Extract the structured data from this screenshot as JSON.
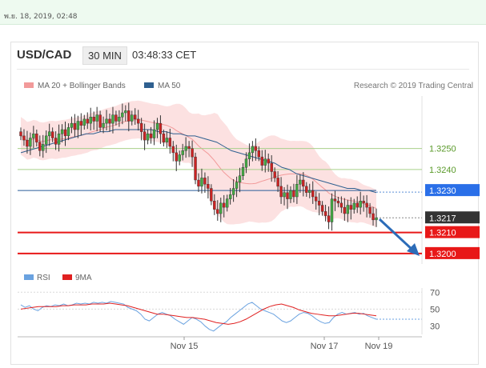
{
  "timestamp": "พ.ย. 18, 2019, 02:48",
  "header": {
    "pair": "USD/CAD",
    "timeframe": "30 MIN",
    "time": "03:48:33 CET"
  },
  "colors": {
    "bollinger": "#f29a9a",
    "ma50": "#2f6090",
    "rsi": "#6aa2e0",
    "rsi_ma": "#e02020",
    "support": "#e81818",
    "level_blue": "#2a6fe8",
    "price_box": "#333333",
    "arrow": "#2c6cb8"
  },
  "chart_data": [
    {
      "type": "candlestick",
      "legend": [
        "MA 20 + Bollinger Bands",
        "MA 50"
      ],
      "legend_placement": "top-left",
      "credit": "Research © 2019 Trading Central",
      "x_ticks": [
        "Nov 15",
        "Nov 17",
        "Nov 19"
      ],
      "ylim": [
        1.3195,
        1.3275
      ],
      "levels": [
        {
          "value": 1.325,
          "label": "1.3250",
          "kind": "resistance-thin"
        },
        {
          "value": 1.324,
          "label": "1.3240",
          "kind": "resistance-thin"
        },
        {
          "value": 1.323,
          "label": "1.3230",
          "kind": "pivot"
        },
        {
          "value": 1.3217,
          "label": "1.3217",
          "kind": "last-price"
        },
        {
          "value": 1.321,
          "label": "1.3210",
          "kind": "target"
        },
        {
          "value": 1.32,
          "label": "1.3200",
          "kind": "target"
        }
      ],
      "close": [
        1.3256,
        1.3254,
        1.3251,
        1.3255,
        1.3257,
        1.3253,
        1.3249,
        1.3252,
        1.3256,
        1.3258,
        1.3255,
        1.3252,
        1.3257,
        1.3259,
        1.3256,
        1.326,
        1.3262,
        1.3259,
        1.3263,
        1.3261,
        1.3264,
        1.3262,
        1.3265,
        1.3263,
        1.3266,
        1.326,
        1.3262,
        1.3264,
        1.3262,
        1.3266,
        1.3263,
        1.3265,
        1.3267,
        1.3268,
        1.3263,
        1.3266,
        1.3264,
        1.3262,
        1.3258,
        1.3254,
        1.3257,
        1.3255,
        1.3259,
        1.3262,
        1.3257,
        1.3253,
        1.3255,
        1.3251,
        1.3248,
        1.3244,
        1.3247,
        1.3249,
        1.3251,
        1.325,
        1.3246,
        1.3235,
        1.3232,
        1.3236,
        1.3233,
        1.3231,
        1.3225,
        1.3221,
        1.3219,
        1.3224,
        1.3222,
        1.3226,
        1.3228,
        1.3231,
        1.3234,
        1.3237,
        1.3241,
        1.3245,
        1.3248,
        1.3251,
        1.3249,
        1.3246,
        1.3242,
        1.3245,
        1.3243,
        1.3239,
        1.3236,
        1.3232,
        1.3227,
        1.3229,
        1.3226,
        1.323,
        1.3227,
        1.3233,
        1.3235,
        1.3232,
        1.3229,
        1.323,
        1.3227,
        1.3225,
        1.3223,
        1.322,
        1.3218,
        1.3215,
        1.3226,
        1.3225,
        1.3224,
        1.3222,
        1.3219,
        1.3223,
        1.3221,
        1.3224,
        1.3222,
        1.3225,
        1.3224,
        1.3222,
        1.3219,
        1.3216,
        1.3217
      ],
      "ma50": [
        1.3248,
        1.3249,
        1.325,
        1.3251,
        1.3252,
        1.3253,
        1.3254,
        1.3255,
        1.3256,
        1.3257,
        1.3257,
        1.3258,
        1.3258,
        1.3259,
        1.3259,
        1.3259,
        1.3259,
        1.3259,
        1.3259,
        1.3258,
        1.3258,
        1.3257,
        1.3257,
        1.3256,
        1.3256,
        1.3255,
        1.3254,
        1.3253,
        1.3251,
        1.3249,
        1.3248,
        1.3247,
        1.3246,
        1.3245,
        1.3244,
        1.3243,
        1.3241,
        1.324,
        1.3238,
        1.3237,
        1.3236,
        1.3235,
        1.3234,
        1.3233,
        1.3232,
        1.3231,
        1.3231,
        1.323,
        1.323,
        1.3229
      ],
      "rsi": {
        "yticks": [
          70,
          50,
          30
        ],
        "ylim": [
          20,
          75
        ],
        "legend": [
          "RSI",
          "9MA"
        ],
        "values": [
          55,
          52,
          54,
          50,
          48,
          52,
          54,
          53,
          55,
          54,
          56,
          54,
          55,
          57,
          56,
          57,
          56,
          58,
          57,
          58,
          57,
          59,
          58,
          57,
          56,
          52,
          50,
          48,
          44,
          38,
          36,
          40,
          44,
          46,
          44,
          42,
          38,
          35,
          32,
          36,
          40,
          38,
          35,
          30,
          26,
          24,
          28,
          32,
          35,
          40,
          44,
          48,
          52,
          56,
          58,
          54,
          50,
          48,
          46,
          44,
          40,
          36,
          34,
          36,
          40,
          44,
          46,
          45,
          42,
          38,
          35,
          33,
          34,
          40,
          44,
          46,
          44,
          45,
          46,
          44,
          45,
          42,
          40,
          38
        ],
        "ma": [
          50,
          51,
          52,
          53,
          53,
          53,
          53,
          54,
          54,
          55,
          55,
          55,
          56,
          56,
          56,
          57,
          56,
          55,
          54,
          52,
          50,
          48,
          46,
          44,
          44,
          43,
          42,
          41,
          40,
          40,
          39,
          38,
          36,
          34,
          33,
          32,
          33,
          35,
          38,
          42,
          46,
          50,
          53,
          55,
          56,
          54,
          52,
          49,
          47,
          45,
          44,
          43,
          42,
          42,
          43,
          44,
          45,
          45,
          44,
          43,
          42
        ]
      }
    }
  ]
}
